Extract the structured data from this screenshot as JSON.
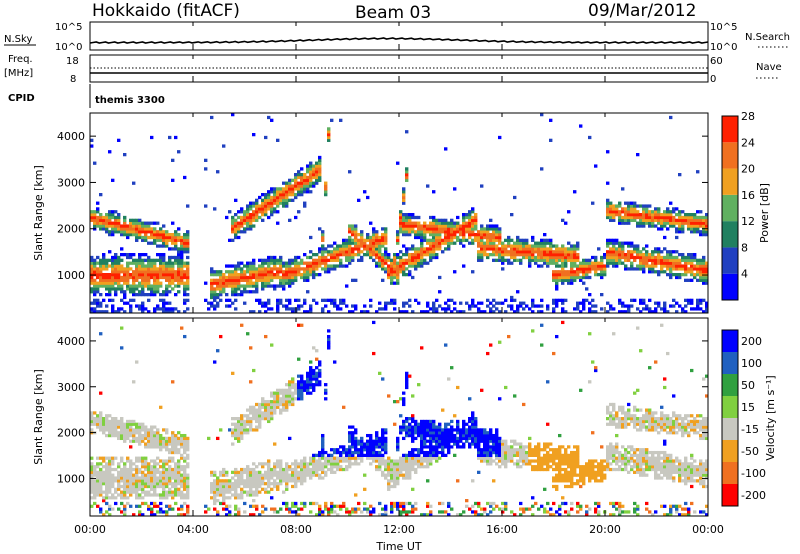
{
  "header": {
    "radar": "Hokkaido (fitACF)",
    "beam": "Beam 03",
    "date": "09/Mar/2012"
  },
  "strip": {
    "nsky_label": "N.Sky",
    "nsky_ticks": [
      "10^5",
      "10^0"
    ],
    "nsearch_label": "N.Search",
    "nsearch_ticks": [
      "10^5",
      "10^0"
    ],
    "freq_label_1": "Freq.",
    "freq_label_2": "[MHz]",
    "freq_ticks": [
      "18",
      "8"
    ],
    "nave_label": "Nave",
    "nave_ticks": [
      "60",
      "0"
    ],
    "cpid_label": "CPID",
    "cpid_value": "themis 3300"
  },
  "chart_data": [
    {
      "type": "heatmap",
      "name": "power",
      "ylabel": "Slant Range [km]",
      "yticks": [
        1000,
        2000,
        3000,
        4000
      ],
      "ylim": [
        180,
        4500
      ],
      "colorbar_label": "Power [dB]",
      "colorbar_ticks": [
        "4",
        "8",
        "12",
        "16",
        "20",
        "24",
        "28"
      ],
      "colors": [
        "#0000ff",
        "#2040c0",
        "#208060",
        "#60b060",
        "#f0a020",
        "#f07020",
        "#ff2000"
      ],
      "data_gap_utc": [
        3.8,
        4.4
      ]
    },
    {
      "type": "heatmap",
      "name": "velocity",
      "ylabel": "Slant Range [km]",
      "yticks": [
        1000,
        2000,
        3000,
        4000
      ],
      "ylim": [
        180,
        4500
      ],
      "colorbar_label": "Velocity [m s⁻¹]",
      "colorbar_ticks": [
        "200",
        "100",
        "50",
        "15",
        "-15",
        "-50",
        "-100",
        "-200"
      ],
      "colors": [
        "#0000ff",
        "#2060c0",
        "#30a040",
        "#80d040",
        "#c8c8c0",
        "#f0a020",
        "#f07020",
        "#ff0000"
      ]
    }
  ],
  "xaxis": {
    "label": "Time UT",
    "ticks": [
      "00:00",
      "04:00",
      "08:00",
      "12:00",
      "16:00",
      "20:00",
      "00:00"
    ]
  }
}
